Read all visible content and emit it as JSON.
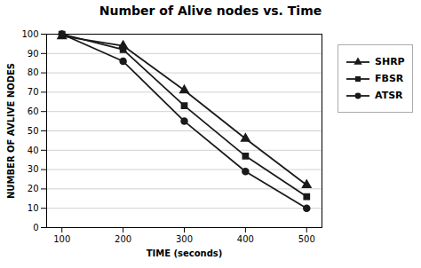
{
  "chart_data": {
    "type": "line",
    "title": "Number of Alive nodes vs. Time",
    "xlabel": "TIME (seconds)",
    "ylabel": "NUMBER OF AVLIVE NODES",
    "x": [
      100,
      200,
      300,
      400,
      500
    ],
    "series": [
      {
        "name": "SHRP",
        "color": "#1a1a1a",
        "marker": "triangle",
        "values": [
          99,
          94,
          71,
          46,
          22
        ]
      },
      {
        "name": "FBSR",
        "color": "#1a1a1a",
        "marker": "square",
        "values": [
          100,
          92,
          63,
          37,
          16
        ]
      },
      {
        "name": "ATSR",
        "color": "#1a1a1a",
        "marker": "circle",
        "values": [
          100,
          86,
          55,
          29,
          10
        ]
      }
    ],
    "xlim": [
      75,
      525
    ],
    "ylim": [
      0,
      100
    ],
    "xticks": [
      100,
      200,
      300,
      400,
      500
    ],
    "yticks": [
      0,
      10,
      20,
      30,
      40,
      50,
      60,
      70,
      80,
      90,
      100
    ],
    "grid": "y",
    "legend": "right"
  }
}
